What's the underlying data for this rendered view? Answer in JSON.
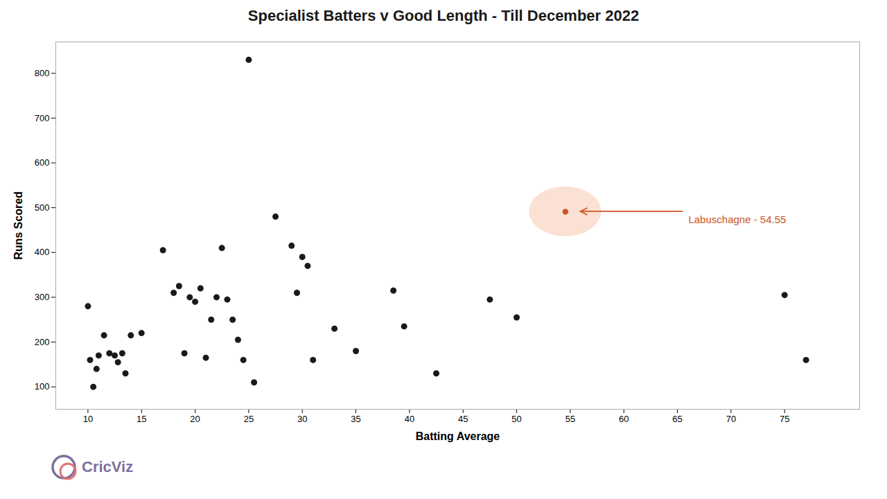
{
  "chart_data": {
    "type": "scatter",
    "title": "Specialist Batters v Good Length - Till December 2022",
    "xlabel": "Batting Average",
    "ylabel": "Runs Scored",
    "xlim": [
      7,
      82
    ],
    "ylim": [
      50,
      870
    ],
    "xticks": [
      10,
      15,
      20,
      25,
      30,
      35,
      40,
      45,
      50,
      55,
      60,
      65,
      70,
      75
    ],
    "yticks": [
      100,
      200,
      300,
      400,
      500,
      600,
      700,
      800
    ],
    "grid": false,
    "color": "#1a1a1a",
    "x": [
      10.0,
      10.2,
      10.5,
      10.8,
      11.0,
      11.5,
      12.0,
      12.5,
      12.8,
      13.2,
      13.5,
      14.0,
      15.0,
      17.0,
      18.0,
      18.5,
      19.0,
      19.5,
      20.0,
      20.5,
      21.0,
      21.5,
      22.0,
      22.5,
      23.0,
      23.5,
      24.0,
      24.5,
      25.0,
      25.5,
      27.5,
      29.0,
      29.5,
      30.0,
      30.5,
      31.0,
      33.0,
      35.0,
      38.5,
      39.5,
      42.5,
      47.5,
      50.0,
      75.0,
      77.0
    ],
    "values": [
      280,
      160,
      100,
      140,
      170,
      215,
      175,
      170,
      155,
      175,
      130,
      215,
      220,
      405,
      310,
      325,
      175,
      300,
      290,
      320,
      165,
      250,
      300,
      410,
      295,
      250,
      205,
      160,
      830,
      110,
      480,
      415,
      310,
      390,
      370,
      160,
      230,
      180,
      315,
      235,
      130,
      295,
      255,
      305,
      160
    ],
    "annotations": [
      {
        "text": "Labuschagne - 54.55",
        "x": 54.55,
        "y": 491,
        "colors": [
          "#cc5522",
          "#f5c4a8"
        ]
      }
    ],
    "caption": {
      "text": "CricViz",
      "colors": [
        "#7b6fa0",
        "#e07070"
      ]
    }
  }
}
